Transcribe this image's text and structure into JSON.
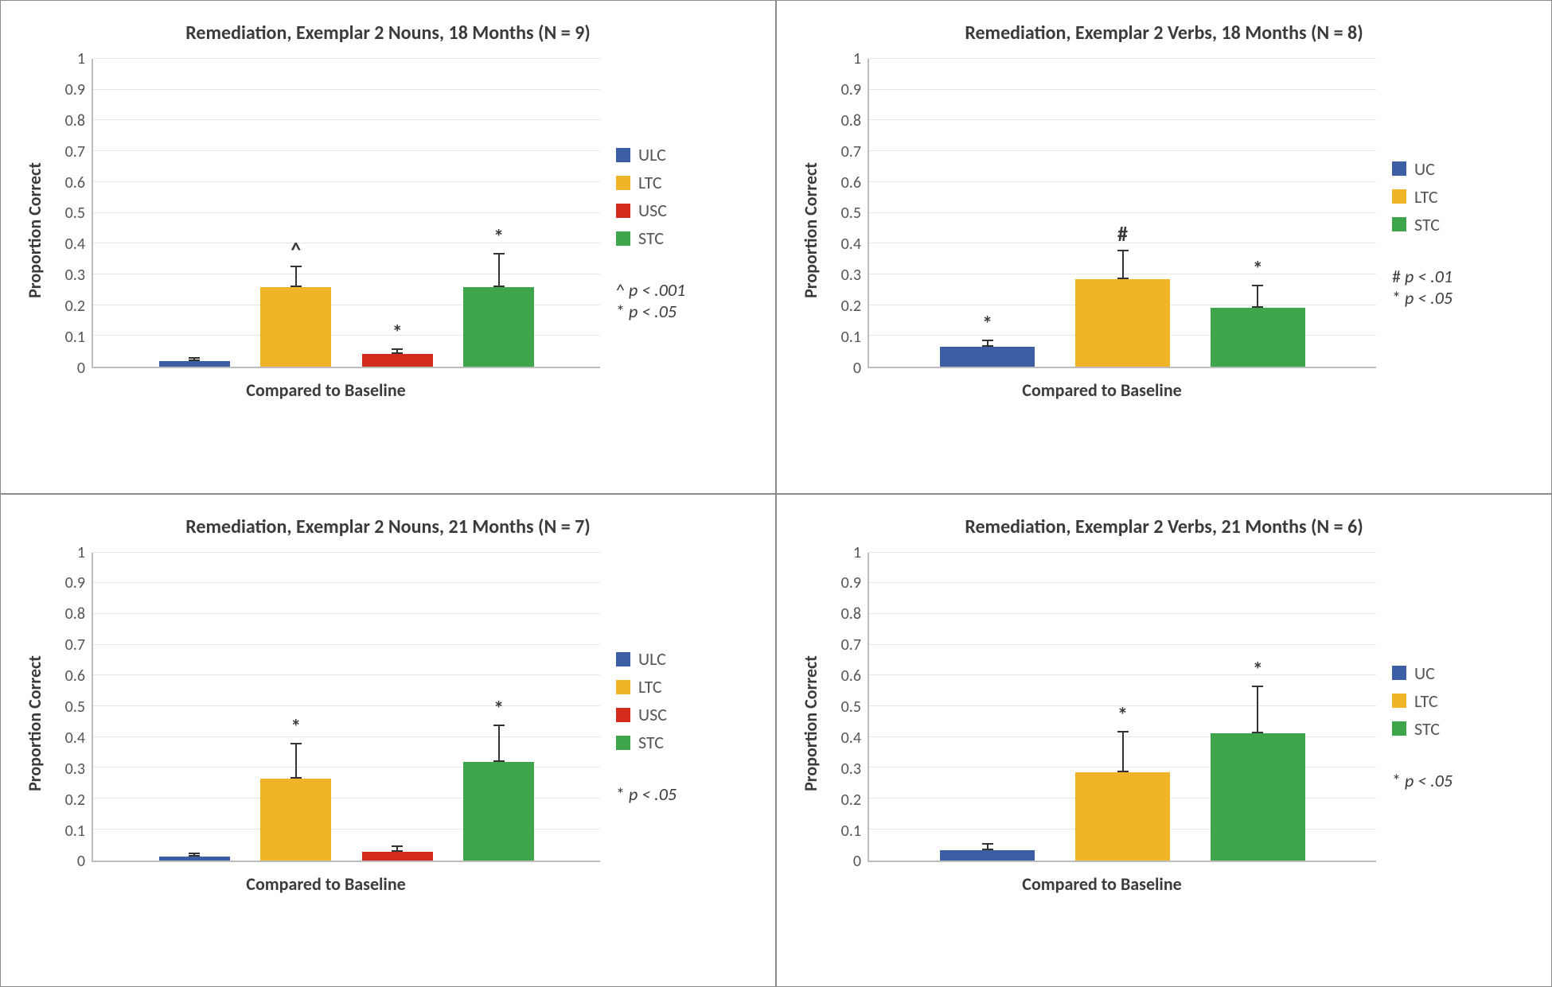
{
  "grid_layout": {
    "rows": 2,
    "cols": 2
  },
  "ylabel": "Proportion Correct",
  "xlabel": "Compared to Baseline",
  "ylim": [
    0,
    1
  ],
  "ytick_step": 0.1,
  "yticks": [
    0,
    0.1,
    0.2,
    0.3,
    0.4,
    0.5,
    0.6,
    0.7,
    0.8,
    0.9,
    1
  ],
  "colors": {
    "ULC": "#3b5fa2",
    "UC": "#3b5fa2",
    "LTC": "#f0b429",
    "USC": "#d32a1e",
    "STC": "#3fa54a",
    "grid": "#e6e6e6",
    "axis": "#bdbdbd",
    "text": "#3b3b3b",
    "background": "#ffffff"
  },
  "title_fontsize": 24,
  "label_fontsize": 22,
  "tick_fontsize": 20,
  "bar_width": 0.7,
  "panels": [
    {
      "id": "nouns18",
      "title": "Remediation, Exemplar 2 Nouns, 18 Months (N = 9)",
      "legend": [
        "ULC",
        "LTC",
        "USC",
        "STC"
      ],
      "bars": [
        {
          "label": "ULC",
          "value": 0.018,
          "error": 0.013,
          "sig": ""
        },
        {
          "label": "LTC",
          "value": 0.258,
          "error": 0.07,
          "sig": "^"
        },
        {
          "label": "USC",
          "value": 0.042,
          "error": 0.018,
          "sig": "*"
        },
        {
          "label": "STC",
          "value": 0.258,
          "error": 0.112,
          "sig": "*"
        }
      ],
      "sig_notes": [
        {
          "symbol": "^",
          "text": "p < .001"
        },
        {
          "symbol": "*",
          "text": "p < .05"
        }
      ]
    },
    {
      "id": "verbs18",
      "title": "Remediation, Exemplar 2 Verbs, 18 Months (N = 8)",
      "legend": [
        "UC",
        "LTC",
        "STC"
      ],
      "bars": [
        {
          "label": "UC",
          "value": 0.065,
          "error": 0.024,
          "sig": "*"
        },
        {
          "label": "LTC",
          "value": 0.285,
          "error": 0.095,
          "sig": "#"
        },
        {
          "label": "STC",
          "value": 0.19,
          "error": 0.075,
          "sig": "*"
        }
      ],
      "sig_notes": [
        {
          "symbol": "#",
          "text": "p < .01"
        },
        {
          "symbol": "*",
          "text": "p < .05"
        }
      ]
    },
    {
      "id": "nouns21",
      "title": "Remediation, Exemplar 2 Nouns, 21 Months (N = 7)",
      "legend": [
        "ULC",
        "LTC",
        "USC",
        "STC"
      ],
      "bars": [
        {
          "label": "ULC",
          "value": 0.012,
          "error": 0.013,
          "sig": ""
        },
        {
          "label": "LTC",
          "value": 0.265,
          "error": 0.115,
          "sig": "*"
        },
        {
          "label": "USC",
          "value": 0.026,
          "error": 0.023,
          "sig": ""
        },
        {
          "label": "STC",
          "value": 0.32,
          "error": 0.12,
          "sig": "*"
        }
      ],
      "sig_notes": [
        {
          "symbol": "*",
          "text": "p < .05"
        }
      ]
    },
    {
      "id": "verbs21",
      "title": "Remediation, Exemplar 2 Verbs, 21 Months (N = 6)",
      "legend": [
        "UC",
        "LTC",
        "STC"
      ],
      "bars": [
        {
          "label": "UC",
          "value": 0.032,
          "error": 0.024,
          "sig": ""
        },
        {
          "label": "LTC",
          "value": 0.285,
          "error": 0.135,
          "sig": "*"
        },
        {
          "label": "STC",
          "value": 0.412,
          "error": 0.155,
          "sig": "*"
        }
      ],
      "sig_notes": [
        {
          "symbol": "*",
          "text": "p < .05"
        }
      ]
    }
  ]
}
